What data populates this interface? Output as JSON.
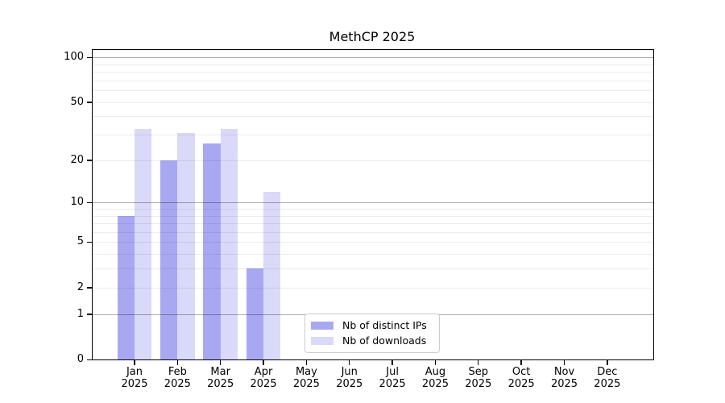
{
  "title": "MethCP 2025",
  "chart_data": {
    "type": "bar",
    "title": "MethCP 2025",
    "categories": [
      "Jan 2025",
      "Feb 2025",
      "Mar 2025",
      "Apr 2025",
      "May 2025",
      "Jun 2025",
      "Jul 2025",
      "Aug 2025",
      "Sep 2025",
      "Oct 2025",
      "Nov 2025",
      "Dec 2025"
    ],
    "series": [
      {
        "name": "Nb of distinct IPs",
        "color": "#a8a8f2",
        "values": [
          8,
          20,
          26,
          3,
          0,
          0,
          0,
          0,
          0,
          0,
          0,
          0
        ]
      },
      {
        "name": "Nb of downloads",
        "color": "#d9d9f9",
        "values": [
          33,
          31,
          33,
          12,
          0,
          0,
          0,
          0,
          0,
          0,
          0,
          0
        ]
      }
    ],
    "xlabel": "",
    "ylabel": "",
    "y_ticks": [
      0,
      1,
      2,
      5,
      10,
      20,
      50,
      100
    ],
    "y_minor_gridlines": [
      2,
      3,
      4,
      5,
      6,
      7,
      8,
      9,
      20,
      30,
      40,
      50,
      60,
      70,
      80,
      90
    ],
    "y_major_gridlines": [
      1,
      10,
      100
    ],
    "y_scale": "log10(1+y)",
    "ylim": [
      0,
      110
    ],
    "grid": "on",
    "legend_position": "lower center"
  }
}
